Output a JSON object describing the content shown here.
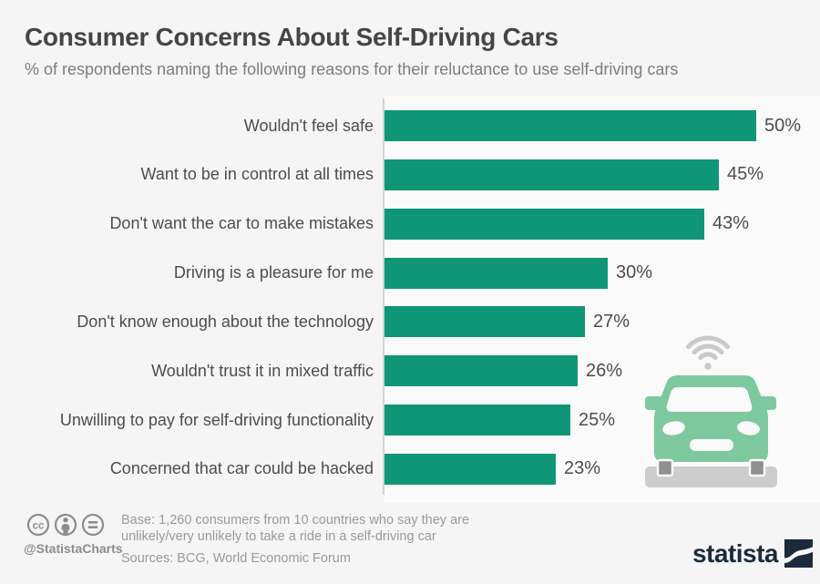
{
  "header": {
    "title": "Consumer Concerns About Self-Driving Cars",
    "subtitle": "% of respondents naming the following reasons for their reluctance to use self-driving cars"
  },
  "chart_data": {
    "type": "bar",
    "orientation": "horizontal",
    "title": "Consumer Concerns About Self-Driving Cars",
    "categories": [
      "Wouldn't feel safe",
      "Want to be in control at all times",
      "Don't want the car to make mistakes",
      "Driving is a pleasure for me",
      "Don't know enough about the technology",
      "Wouldn't trust it in mixed traffic",
      "Unwilling to pay for self-driving functionality",
      "Concerned that car could be hacked"
    ],
    "values": [
      50,
      45,
      43,
      30,
      27,
      26,
      25,
      23
    ],
    "value_labels": [
      "50%",
      "45%",
      "43%",
      "30%",
      "27%",
      "26%",
      "25%",
      "23%"
    ],
    "unit": "%",
    "xlim": [
      0,
      50
    ],
    "grid": false,
    "legend": false,
    "bar_color": "#0e9676"
  },
  "illustration": {
    "name": "self-driving-car-with-wifi-signal",
    "car_color": "#7ec89d",
    "signal_color": "#c9c9c9",
    "road_color": "#cdcdcd",
    "wheel_color": "#8f8f8f"
  },
  "footer": {
    "license_icons": [
      "cc-icon",
      "attribution-person-icon",
      "equals-no-derivatives-icon"
    ],
    "handle": "@StatistaCharts",
    "base_line1": "Base: 1,260 consumers from 10 countries who say they are",
    "base_line2": "unlikely/very unlikely to take a ride in a self-driving car",
    "sources": "Sources: BCG, World Economic Forum",
    "brand": "statista",
    "brand_color": "#1b2a3c"
  }
}
